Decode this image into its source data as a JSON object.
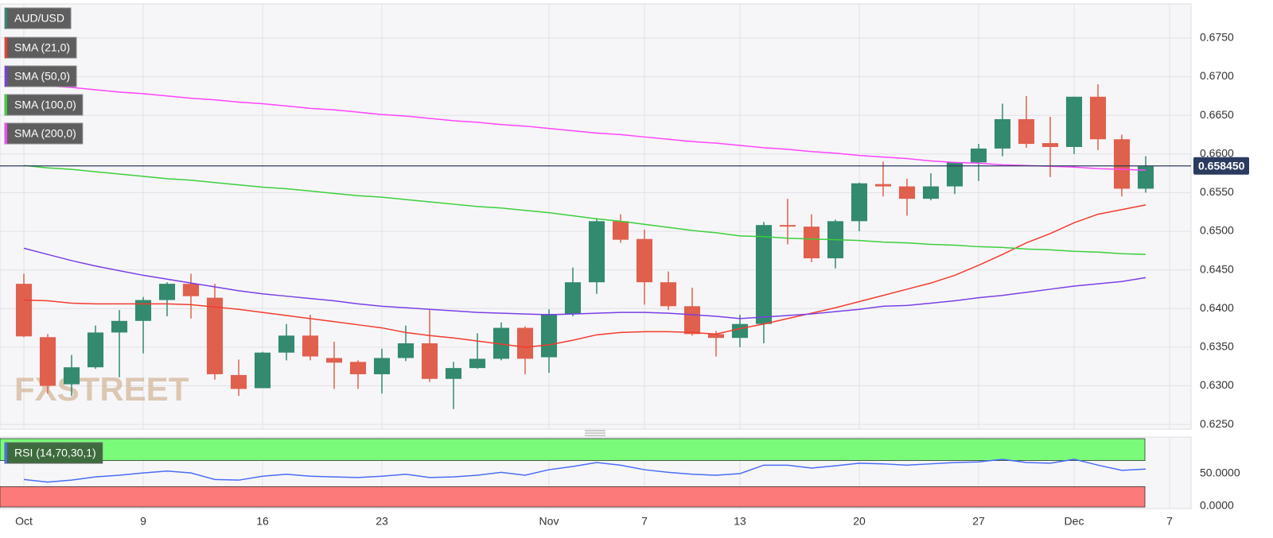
{
  "chart_data": [
    {
      "type": "candlestick",
      "name": "AUD/USD",
      "color": "#2f8a72",
      "up_color": "#338a6e",
      "down_color": "#e0604e",
      "open": [
        0.6432,
        0.6363,
        0.6302,
        0.6324,
        0.6369,
        0.6384,
        0.6411,
        0.6432,
        0.6414,
        0.6314,
        0.6297,
        0.6343,
        0.6365,
        0.6336,
        0.6331,
        0.6315,
        0.6336,
        0.6355,
        0.6309,
        0.6323,
        0.6335,
        0.6375,
        0.6337,
        0.6393,
        0.6434,
        0.6513,
        0.649,
        0.6434,
        0.6403,
        0.6367,
        0.6362,
        0.638,
        0.6508,
        0.6506,
        0.6465,
        0.6513,
        0.6561,
        0.6558,
        0.6542,
        0.6558,
        0.6589,
        0.6607,
        0.6645,
        0.6614,
        0.6609,
        0.6674,
        0.6619,
        0.6555
      ],
      "high": [
        0.6445,
        0.6367,
        0.634,
        0.6378,
        0.6398,
        0.6415,
        0.6434,
        0.6445,
        0.6432,
        0.6334,
        0.6344,
        0.638,
        0.6392,
        0.6357,
        0.6333,
        0.6348,
        0.6378,
        0.6398,
        0.6331,
        0.6368,
        0.6382,
        0.6377,
        0.6399,
        0.6453,
        0.6517,
        0.6522,
        0.6502,
        0.6448,
        0.6427,
        0.6371,
        0.6392,
        0.6512,
        0.6542,
        0.6522,
        0.6515,
        0.6563,
        0.659,
        0.6568,
        0.6575,
        0.659,
        0.6613,
        0.6665,
        0.6675,
        0.6648,
        0.6674,
        0.669,
        0.6625,
        0.6597
      ],
      "low": [
        0.6363,
        0.629,
        0.6287,
        0.6322,
        0.6311,
        0.6342,
        0.639,
        0.6387,
        0.6308,
        0.6287,
        0.6297,
        0.6333,
        0.6333,
        0.6296,
        0.6296,
        0.629,
        0.6332,
        0.6305,
        0.627,
        0.6322,
        0.6333,
        0.6315,
        0.6317,
        0.639,
        0.6419,
        0.6485,
        0.6405,
        0.6398,
        0.6365,
        0.6338,
        0.635,
        0.6355,
        0.6483,
        0.646,
        0.6452,
        0.65,
        0.6545,
        0.652,
        0.654,
        0.6548,
        0.6565,
        0.6597,
        0.6608,
        0.657,
        0.66,
        0.6605,
        0.6545,
        0.655
      ],
      "close": [
        0.6364,
        0.63,
        0.6324,
        0.6369,
        0.6384,
        0.6411,
        0.6432,
        0.6416,
        0.6315,
        0.6296,
        0.6343,
        0.6365,
        0.6338,
        0.633,
        0.6315,
        0.6336,
        0.6355,
        0.6309,
        0.6323,
        0.6335,
        0.6375,
        0.6335,
        0.6393,
        0.6434,
        0.6513,
        0.6489,
        0.6434,
        0.6403,
        0.6367,
        0.6362,
        0.638,
        0.6508,
        0.6506,
        0.6465,
        0.6513,
        0.6562,
        0.6558,
        0.6542,
        0.6558,
        0.6589,
        0.6607,
        0.6645,
        0.6613,
        0.6609,
        0.6674,
        0.6619,
        0.6555,
        0.6584
      ],
      "series": [
        {
          "name": "SMA (21,0)",
          "color": "#f23c2f",
          "values": [
            0.6411,
            0.641,
            0.6407,
            0.6406,
            0.6406,
            0.6406,
            0.6406,
            0.6405,
            0.6402,
            0.6399,
            0.6395,
            0.6391,
            0.6387,
            0.6383,
            0.6379,
            0.6375,
            0.6369,
            0.6365,
            0.6362,
            0.6358,
            0.6354,
            0.635,
            0.6353,
            0.6359,
            0.6366,
            0.6369,
            0.637,
            0.637,
            0.6369,
            0.6367,
            0.6374,
            0.638,
            0.6387,
            0.6394,
            0.6401,
            0.6409,
            0.6417,
            0.6425,
            0.6433,
            0.6443,
            0.6456,
            0.647,
            0.6485,
            0.6497,
            0.6511,
            0.6522,
            0.6528,
            0.6534
          ]
        },
        {
          "name": "SMA (50,0)",
          "color": "#7a3fe6",
          "values": [
            0.6478,
            0.647,
            0.6462,
            0.6455,
            0.6449,
            0.6443,
            0.6438,
            0.6433,
            0.6428,
            0.6423,
            0.6419,
            0.6416,
            0.6413,
            0.641,
            0.6406,
            0.6403,
            0.6401,
            0.6399,
            0.6397,
            0.6395,
            0.6394,
            0.6393,
            0.6392,
            0.6393,
            0.6394,
            0.6395,
            0.6395,
            0.6394,
            0.6392,
            0.639,
            0.6387,
            0.6389,
            0.6391,
            0.6393,
            0.6396,
            0.6399,
            0.6403,
            0.6404,
            0.6407,
            0.641,
            0.6414,
            0.6417,
            0.6421,
            0.6425,
            0.6429,
            0.6432,
            0.6435,
            0.644
          ]
        },
        {
          "name": "SMA (100,0)",
          "color": "#3ccf3c",
          "values": [
            0.6585,
            0.6582,
            0.658,
            0.6577,
            0.6574,
            0.6571,
            0.6568,
            0.6566,
            0.6563,
            0.656,
            0.6557,
            0.6555,
            0.6552,
            0.6549,
            0.6546,
            0.6544,
            0.6541,
            0.6538,
            0.6535,
            0.6532,
            0.653,
            0.6527,
            0.6524,
            0.652,
            0.6516,
            0.6513,
            0.6509,
            0.6505,
            0.6501,
            0.6498,
            0.6494,
            0.6493,
            0.6491,
            0.649,
            0.6489,
            0.6488,
            0.6486,
            0.6485,
            0.6483,
            0.6482,
            0.648,
            0.6479,
            0.6477,
            0.6476,
            0.6474,
            0.6473,
            0.6471,
            0.647
          ]
        },
        {
          "name": "SMA (200,0)",
          "color": "#ff45ff",
          "values": [
            0.6691,
            0.6688,
            0.6686,
            0.6683,
            0.668,
            0.6678,
            0.6675,
            0.6672,
            0.667,
            0.6667,
            0.6665,
            0.6662,
            0.6659,
            0.6657,
            0.6654,
            0.6651,
            0.6649,
            0.6646,
            0.6643,
            0.6641,
            0.6638,
            0.6636,
            0.6633,
            0.663,
            0.6627,
            0.6625,
            0.6622,
            0.6619,
            0.6616,
            0.6614,
            0.6611,
            0.6608,
            0.6606,
            0.6603,
            0.6601,
            0.6598,
            0.6596,
            0.6594,
            0.6591,
            0.6589,
            0.6588,
            0.6586,
            0.6585,
            0.6584,
            0.6583,
            0.6581,
            0.658,
            0.6579
          ]
        }
      ],
      "ylim": [
        0.6244,
        0.6794
      ],
      "yticks": [
        {
          "value": 0.625,
          "label": "0.6250"
        },
        {
          "value": 0.63,
          "label": "0.6300"
        },
        {
          "value": 0.635,
          "label": "0.6350"
        },
        {
          "value": 0.64,
          "label": "0.6400"
        },
        {
          "value": 0.645,
          "label": "0.6450"
        },
        {
          "value": 0.65,
          "label": "0.6500"
        },
        {
          "value": 0.655,
          "label": "0.6550"
        },
        {
          "value": 0.66,
          "label": "0.6600"
        },
        {
          "value": 0.665,
          "label": "0.6650"
        },
        {
          "value": 0.67,
          "label": "0.6700"
        },
        {
          "value": 0.675,
          "label": "0.6750"
        }
      ],
      "xlim": [
        -1,
        48.9
      ],
      "xticks": [
        {
          "value": 0,
          "label": "Oct"
        },
        {
          "value": 5,
          "label": "9"
        },
        {
          "value": 10,
          "label": "16"
        },
        {
          "value": 15,
          "label": "23"
        },
        {
          "value": 22,
          "label": "Nov"
        },
        {
          "value": 26,
          "label": "7"
        },
        {
          "value": 30,
          "label": "13"
        },
        {
          "value": 35,
          "label": "20"
        },
        {
          "value": 40,
          "label": "27"
        },
        {
          "value": 44,
          "label": "Dec"
        },
        {
          "value": 48,
          "label": "7"
        }
      ],
      "grid": true,
      "last_price": {
        "value": 0.65845,
        "label": "0.658450"
      },
      "last_price_color": "#2b3b60",
      "watermark": "FXSTREET"
    },
    {
      "type": "line",
      "series": [
        {
          "name": "RSI (14,70,30,1)",
          "color": "#4a6cf5",
          "values": [
            41,
            37,
            40,
            45,
            47.5,
            51,
            54,
            51,
            41,
            40,
            46,
            49,
            46,
            45,
            44,
            46,
            49,
            44,
            45,
            47.5,
            52,
            47.5,
            56,
            61,
            67,
            63,
            56,
            52,
            49,
            47.5,
            50,
            63,
            63,
            58.5,
            62,
            66,
            65,
            63,
            65,
            67,
            68,
            72,
            67,
            66,
            72,
            63,
            55,
            57
          ]
        }
      ],
      "ylim": [
        -3.7,
        106.1
      ],
      "yticks": [
        {
          "value": 0,
          "label": "0.0000"
        },
        {
          "value": 50,
          "label": "50.0000"
        }
      ],
      "xlim": [
        -1,
        48.9
      ],
      "overbought": 70,
      "oversold": 30,
      "overbought_color": "#7afc7a",
      "oversold_color": "#fd7a7a"
    }
  ]
}
